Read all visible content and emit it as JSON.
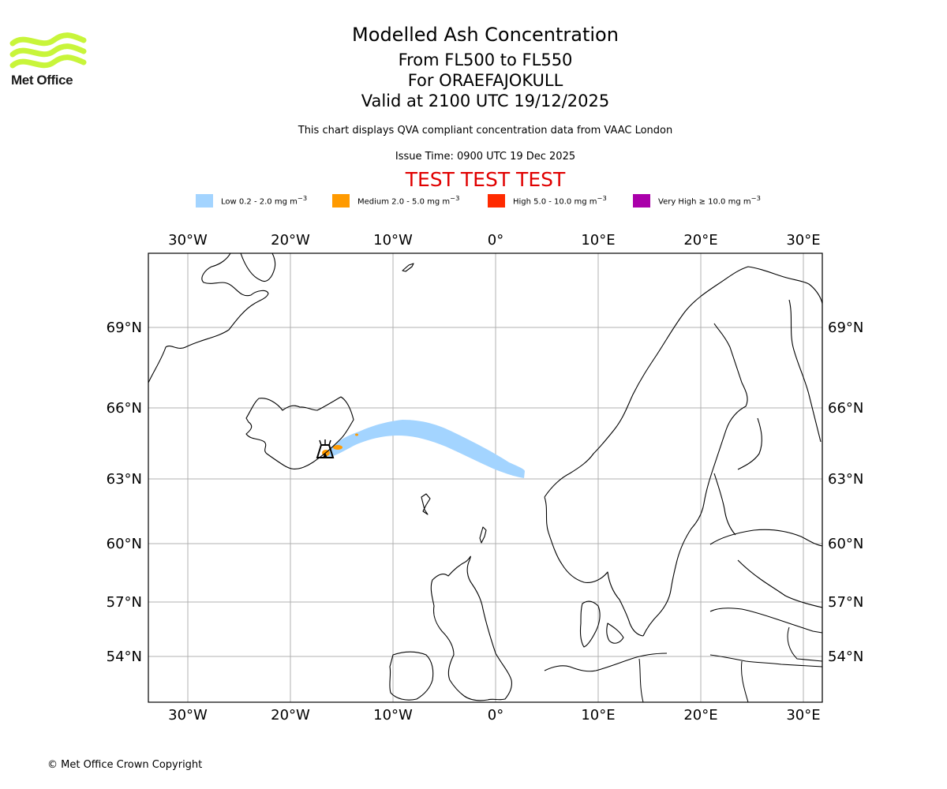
{
  "header": {
    "title": "Modelled Ash Concentration",
    "levels": "From FL500 to FL550",
    "volcano": "For ORAEFAJOKULL",
    "valid": "Valid at 2100 UTC 19/12/2025",
    "subtitle": "This chart displays QVA compliant concentration data from VAAC London",
    "issue": "Issue Time: 0900 UTC 19 Dec 2025",
    "test_banner": "TEST TEST TEST"
  },
  "logo": {
    "text": "Met Office",
    "color": "#c8f53a"
  },
  "legend": [
    {
      "label": "Low 0.2 - 2.0 mg m",
      "sup": "−3",
      "color": "#a3d4ff"
    },
    {
      "label": "Medium 2.0 - 5.0 mg m",
      "sup": "−3",
      "color": "#ff9a00"
    },
    {
      "label": "High 5.0 - 10.0 mg m",
      "sup": "−3",
      "color": "#ff2a00"
    },
    {
      "label": "Very High ≥ 10.0 mg m",
      "sup": "−3",
      "color": "#aa00aa"
    }
  ],
  "map": {
    "lon_range": [
      -34,
      32
    ],
    "lat_range": [
      52,
      72
    ],
    "lon_ticks": [
      {
        "value": -30,
        "label": "30°W"
      },
      {
        "value": -20,
        "label": "20°W"
      },
      {
        "value": -10,
        "label": "10°W"
      },
      {
        "value": 0,
        "label": "0°"
      },
      {
        "value": 10,
        "label": "10°E"
      },
      {
        "value": 20,
        "label": "20°E"
      },
      {
        "value": 30,
        "label": "30°E"
      }
    ],
    "lat_ticks": [
      {
        "value": 69,
        "label": "69°N"
      },
      {
        "value": 66,
        "label": "66°N"
      },
      {
        "value": 63,
        "label": "63°N"
      },
      {
        "value": 60,
        "label": "60°N"
      },
      {
        "value": 57,
        "label": "57°N"
      },
      {
        "value": 54,
        "label": "54°N"
      }
    ],
    "gridlines": true,
    "gridline_color": "#b0b0b0",
    "volcano_marker_icon": "volcano-icon",
    "volcano_position": {
      "lon": -16.6,
      "lat": 64.0
    }
  },
  "footer": {
    "copyright": "© Met Office Crown Copyright"
  }
}
